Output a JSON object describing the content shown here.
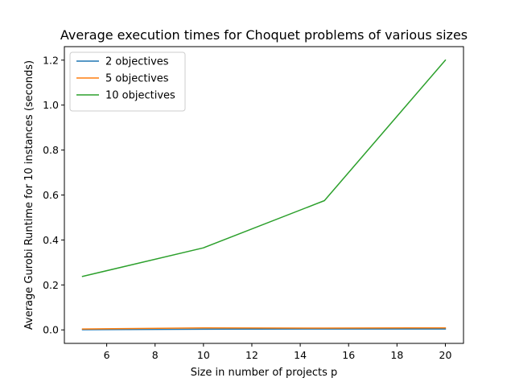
{
  "chart_data": {
    "type": "line",
    "title": "Average execution times for Choquet problems of various sizes",
    "xlabel": "Size in number of projects p",
    "ylabel": "Average Gurobi Runtime for 10 instances (seconds)",
    "x": [
      5,
      10,
      15,
      20
    ],
    "xlim": [
      4.25,
      20.75
    ],
    "ylim": [
      -0.06,
      1.26
    ],
    "xticks": [
      6,
      8,
      10,
      12,
      14,
      16,
      18,
      20
    ],
    "xtick_labels": [
      "6",
      "8",
      "10",
      "12",
      "14",
      "16",
      "18",
      "20"
    ],
    "yticks": [
      0.0,
      0.2,
      0.4,
      0.6,
      0.8,
      1.0,
      1.2
    ],
    "ytick_labels": [
      "0.0",
      "0.2",
      "0.4",
      "0.6",
      "0.8",
      "1.0",
      "1.2"
    ],
    "grid": false,
    "legend_position": "upper-left",
    "series": [
      {
        "name": "2 objectives",
        "color": "#1f77b4",
        "values": [
          0.001,
          0.003,
          0.004,
          0.004
        ]
      },
      {
        "name": "5 objectives",
        "color": "#ff7f0e",
        "values": [
          0.004,
          0.009,
          0.008,
          0.009
        ]
      },
      {
        "name": "10 objectives",
        "color": "#2ca02c",
        "values": [
          0.238,
          0.365,
          0.575,
          1.2
        ]
      }
    ]
  }
}
